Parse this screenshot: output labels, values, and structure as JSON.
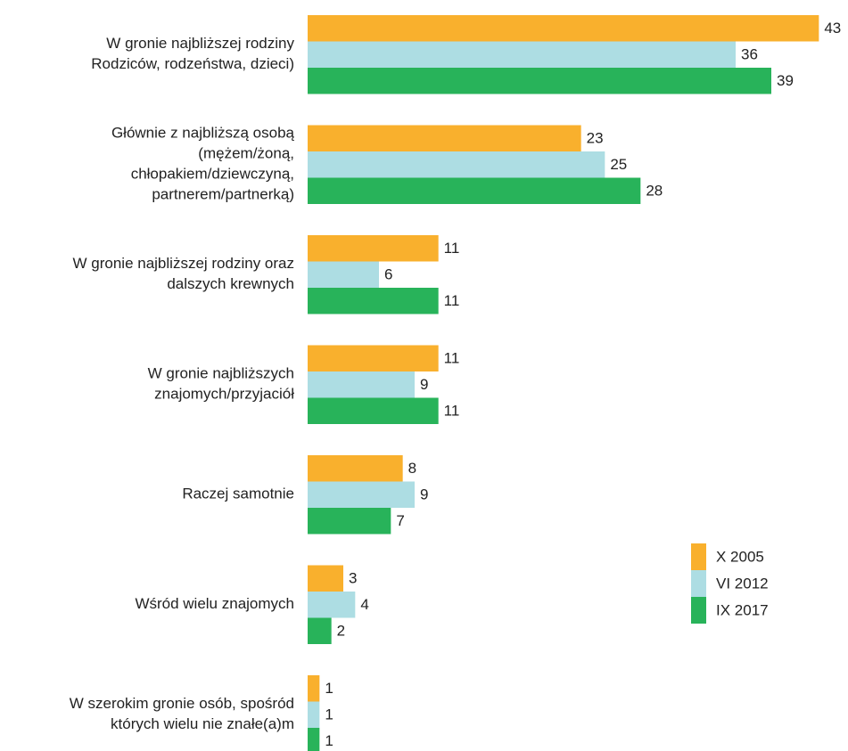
{
  "chart_data": {
    "type": "bar",
    "orientation": "horizontal",
    "categories": [
      [
        "W gronie najbliższej rodziny",
        "Rodziców, rodzeństwa, dzieci)"
      ],
      [
        "Głównie z najbliższą osobą",
        "(mężem/żoną,",
        "chłopakiem/dziewczyną,",
        "partnerem/partnerką)"
      ],
      [
        "W gronie najbliższej rodziny oraz",
        "dalszych krewnych"
      ],
      [
        "W gronie najbliższych",
        "znajomych/przyjaciół"
      ],
      [
        "Raczej samotnie"
      ],
      [
        "Wśród wielu znajomych"
      ],
      [
        "W szerokim gronie osób, spośród",
        "których wielu nie znałe(a)m"
      ]
    ],
    "series": [
      {
        "name": "X 2005",
        "color": "#f9b02d",
        "values": [
          43,
          23,
          11,
          11,
          8,
          3,
          1
        ]
      },
      {
        "name": "VI 2012",
        "color": "#addde3",
        "values": [
          36,
          25,
          6,
          9,
          9,
          4,
          1
        ]
      },
      {
        "name": "IX 2017",
        "color": "#28b35a",
        "values": [
          39,
          28,
          11,
          11,
          7,
          2,
          1
        ]
      }
    ],
    "xlim": [
      0,
      45
    ],
    "legend": "lower right"
  }
}
